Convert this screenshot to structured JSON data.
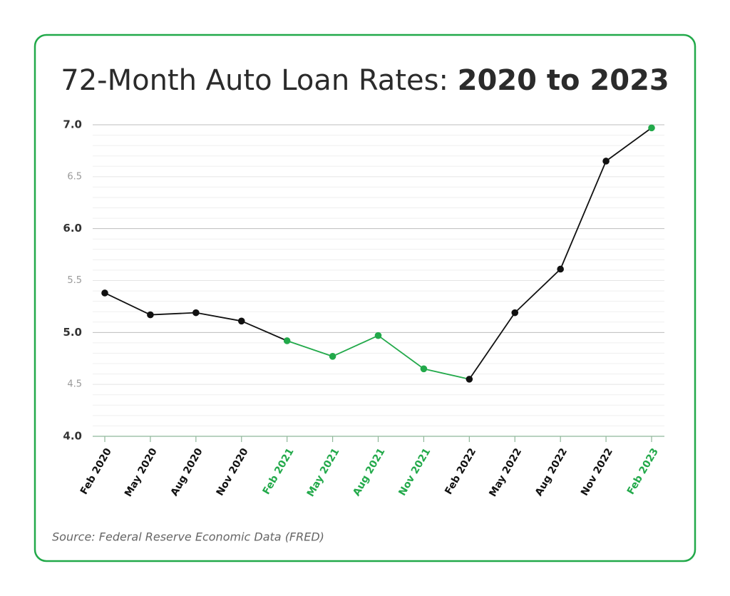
{
  "chart_data": {
    "type": "line",
    "title": "72-Month Auto Loan Rates:",
    "title_emphasis": "2020 to 2023",
    "source": "Source: Federal Reserve Economic Data (FRED)",
    "categories": [
      "Feb 2020",
      "May 2020",
      "Aug 2020",
      "Nov 2020",
      "Feb 2021",
      "May 2021",
      "Aug 2021",
      "Nov 2021",
      "Feb 2022",
      "May 2022",
      "Aug 2022",
      "Nov 2022",
      "Feb 2023"
    ],
    "values": [
      5.38,
      5.17,
      5.19,
      5.11,
      4.92,
      4.77,
      4.97,
      4.65,
      4.55,
      5.19,
      5.61,
      6.65,
      6.97
    ],
    "point_colors": [
      "#111111",
      "#111111",
      "#111111",
      "#111111",
      "#22a94a",
      "#22a94a",
      "#22a94a",
      "#22a94a",
      "#111111",
      "#111111",
      "#111111",
      "#111111",
      "#22a94a"
    ],
    "ylim": [
      4,
      7
    ],
    "yticks": [
      {
        "value": 4,
        "label": "4.0"
      },
      {
        "value": 4.5,
        "label": "4.5"
      },
      {
        "value": 5,
        "label": "5.0"
      },
      {
        "value": 5.5,
        "label": "5.5"
      },
      {
        "value": 6,
        "label": "6.0"
      },
      {
        "value": 6.5,
        "label": "6.5"
      },
      {
        "value": 7,
        "label": "7.0"
      }
    ],
    "grid": true,
    "minor_grid": true,
    "frame_color": "#22a94a"
  }
}
